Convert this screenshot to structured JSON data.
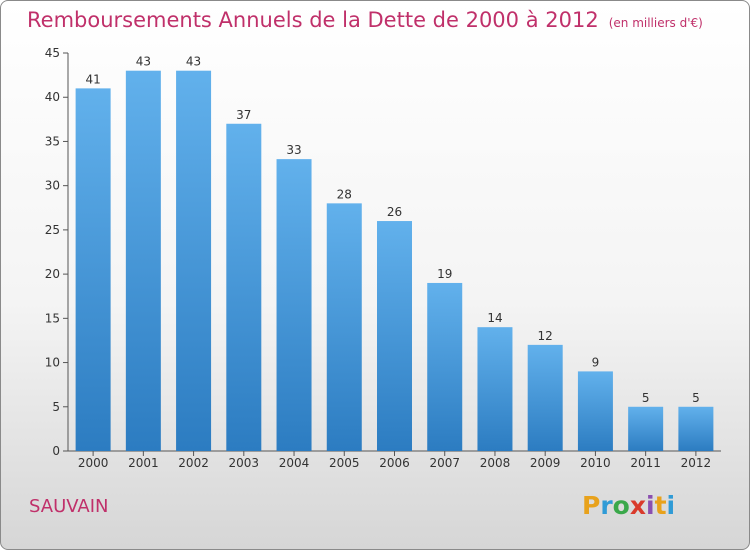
{
  "title": "Remboursements Annuels de la Dette de 2000 à 2012",
  "unit": "(en milliers d'€)",
  "commune": "SAUVAIN",
  "logo": {
    "letters": [
      "P",
      "r",
      "o",
      "x",
      "i",
      "t",
      "i"
    ],
    "colors": [
      "#e8a21c",
      "#2f9bd6",
      "#3aa84a",
      "#d93a2b",
      "#8a4fb0",
      "#e8a21c",
      "#2f9bd6"
    ]
  },
  "colors": {
    "bar_light": "#5dabe8",
    "bar_dark": "#2f7fc3",
    "accent": "#c0306a"
  },
  "chart_data": {
    "type": "bar",
    "title": "Remboursements Annuels de la Dette de 2000 à 2012",
    "subtitle": "(en milliers d'€)",
    "categories": [
      "2000",
      "2001",
      "2002",
      "2003",
      "2004",
      "2005",
      "2006",
      "2007",
      "2008",
      "2009",
      "2010",
      "2011",
      "2012"
    ],
    "values": [
      41,
      43,
      43,
      37,
      33,
      28,
      26,
      19,
      14,
      12,
      9,
      5,
      5
    ],
    "ylim": [
      0,
      45
    ],
    "yticks": [
      0,
      5,
      10,
      15,
      20,
      25,
      30,
      35,
      40,
      45
    ],
    "grid": false
  }
}
